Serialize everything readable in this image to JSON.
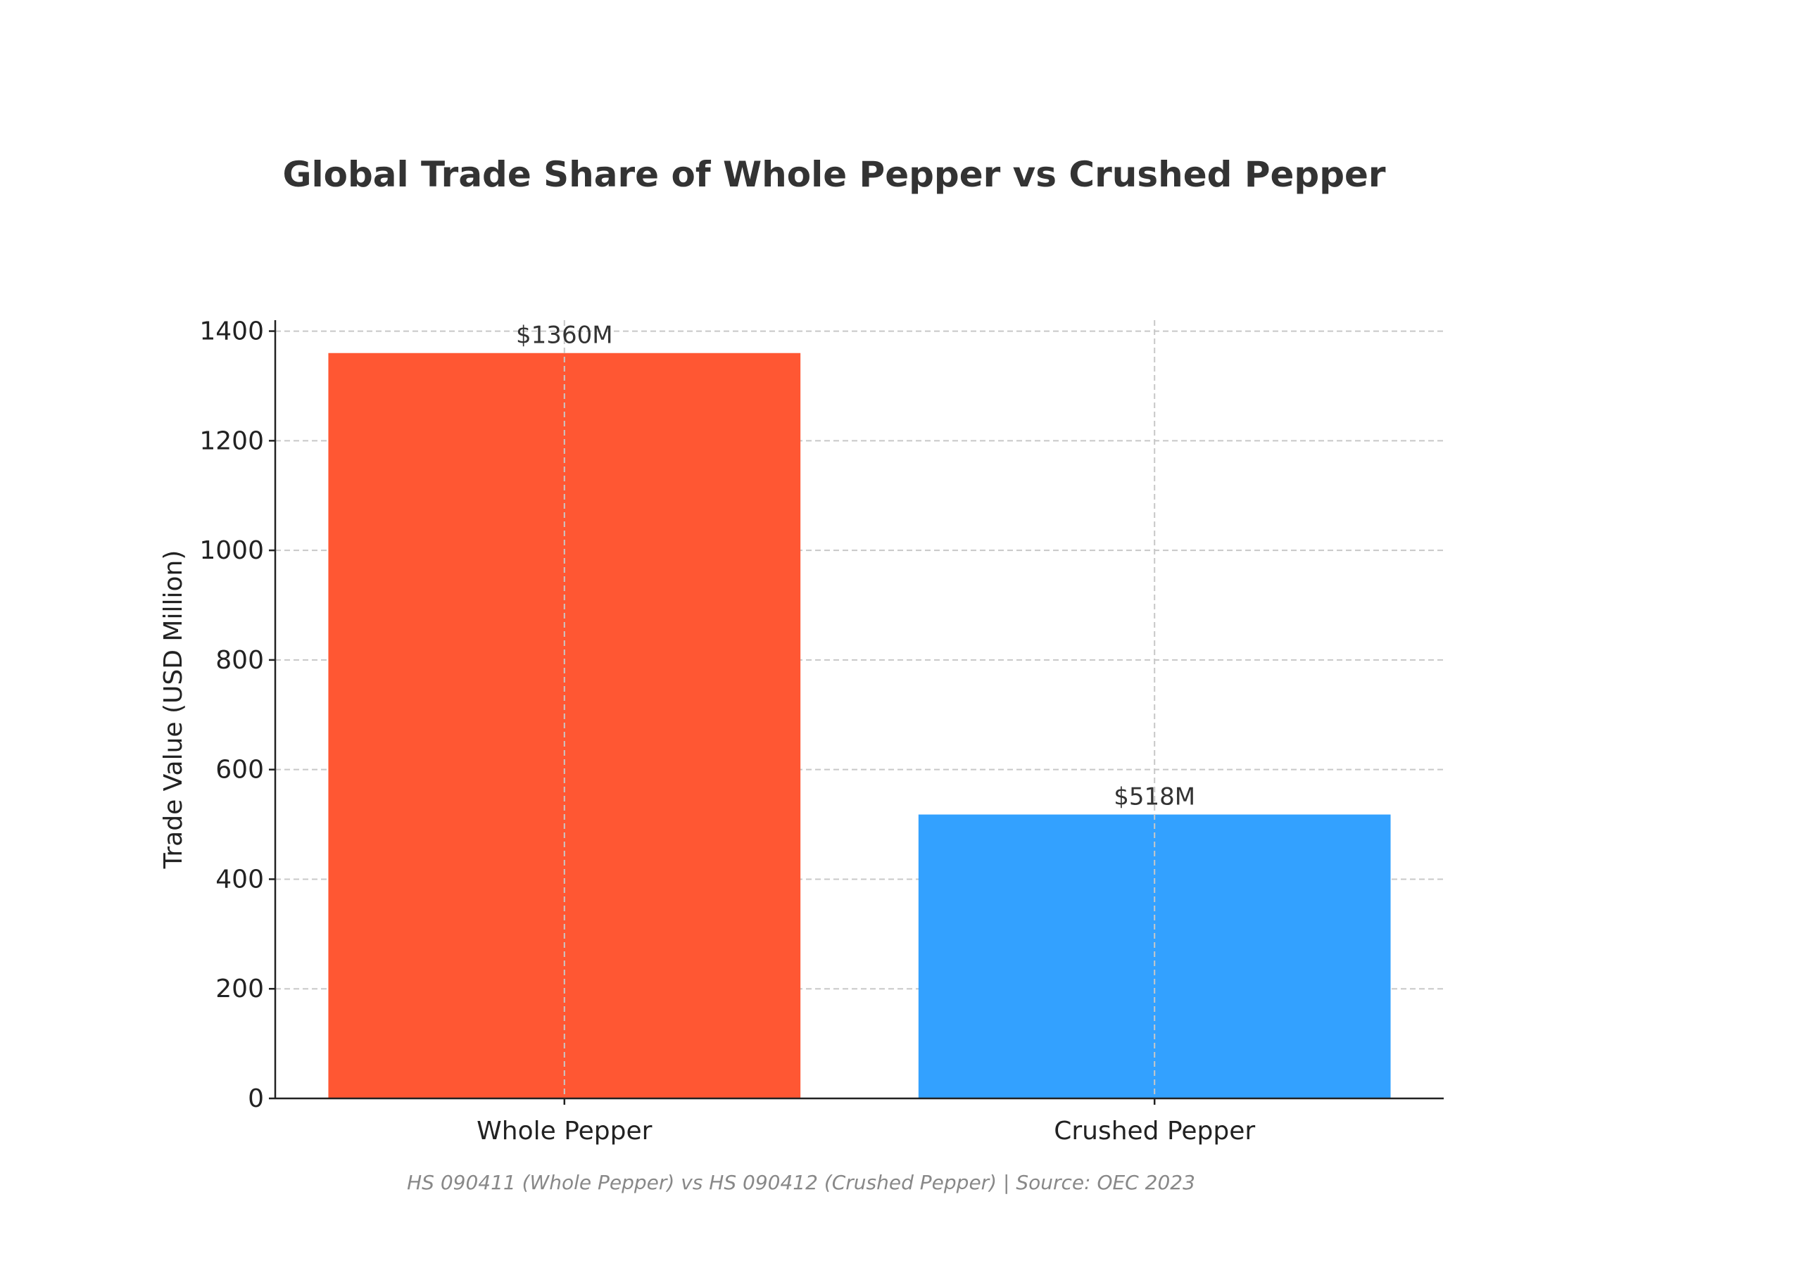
{
  "chart_data": {
    "type": "bar",
    "title": "Global Trade Share of Whole Pepper vs Crushed Pepper",
    "xlabel": "",
    "ylabel": "Trade Value (USD Million)",
    "categories": [
      "Whole Pepper",
      "Crushed Pepper"
    ],
    "values": [
      1360,
      518
    ],
    "data_labels": [
      "$1360M",
      "$518M"
    ],
    "colors": [
      "#FF5733",
      "#33A1FF"
    ],
    "ylim": [
      0,
      1420
    ],
    "yticks": [
      0,
      200,
      400,
      600,
      800,
      1000,
      1200,
      1400
    ],
    "grid": true,
    "footnote": "HS 090411 (Whole Pepper) vs HS 090412 (Crushed Pepper) | Source: OEC 2023"
  }
}
